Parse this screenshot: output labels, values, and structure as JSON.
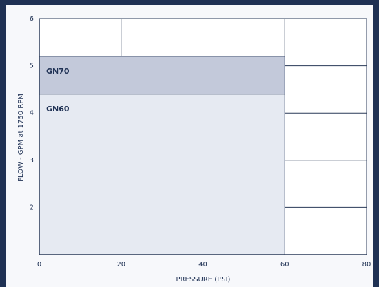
{
  "chart_data": {
    "type": "area",
    "xlabel": "PRESSURE (PSI)",
    "ylabel": "FLOW - GPM at 1750 RPM",
    "series": [
      {
        "name": "GN70",
        "color": "#c3c9da",
        "x": [
          0,
          60
        ],
        "values": [
          5.2,
          5.2
        ]
      },
      {
        "name": "GN60",
        "color": "#e6eaf2",
        "x": [
          0,
          60
        ],
        "values": [
          4.4,
          4.4
        ]
      }
    ],
    "xlim": [
      0,
      80
    ],
    "xticks": [
      0,
      20,
      40,
      60,
      80
    ],
    "ylim": [
      1,
      6
    ],
    "yticks": [
      2,
      3,
      4,
      5,
      6
    ],
    "grid": true
  }
}
